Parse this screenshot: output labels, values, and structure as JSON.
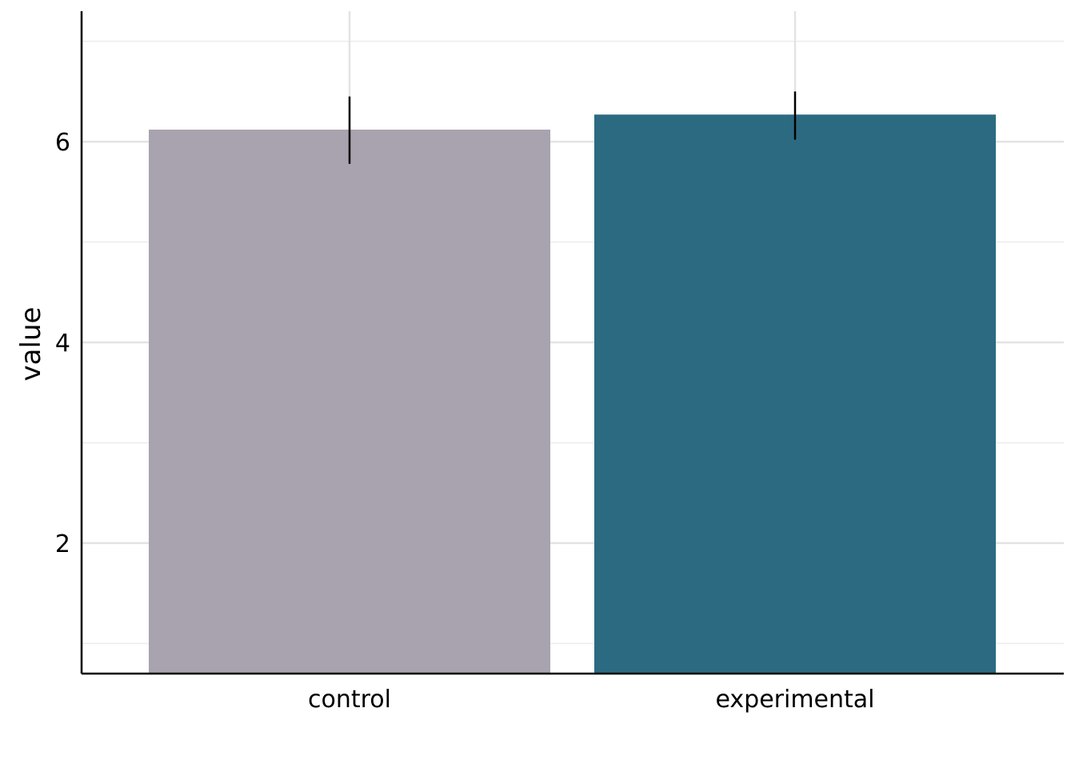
{
  "chart_data": {
    "type": "bar",
    "title": "",
    "xlabel": "",
    "ylabel": "value",
    "categories": [
      "control",
      "experimental"
    ],
    "values": [
      6.12,
      6.27
    ],
    "error_bars": [
      {
        "low": 5.78,
        "high": 6.45
      },
      {
        "low": 6.02,
        "high": 6.5
      }
    ],
    "bar_colors": [
      "#a8a3af",
      "#2c6a82"
    ],
    "ylim": [
      0.7,
      7.3
    ],
    "yticks": [
      2,
      4,
      6
    ],
    "grid": true,
    "legend": "none"
  }
}
